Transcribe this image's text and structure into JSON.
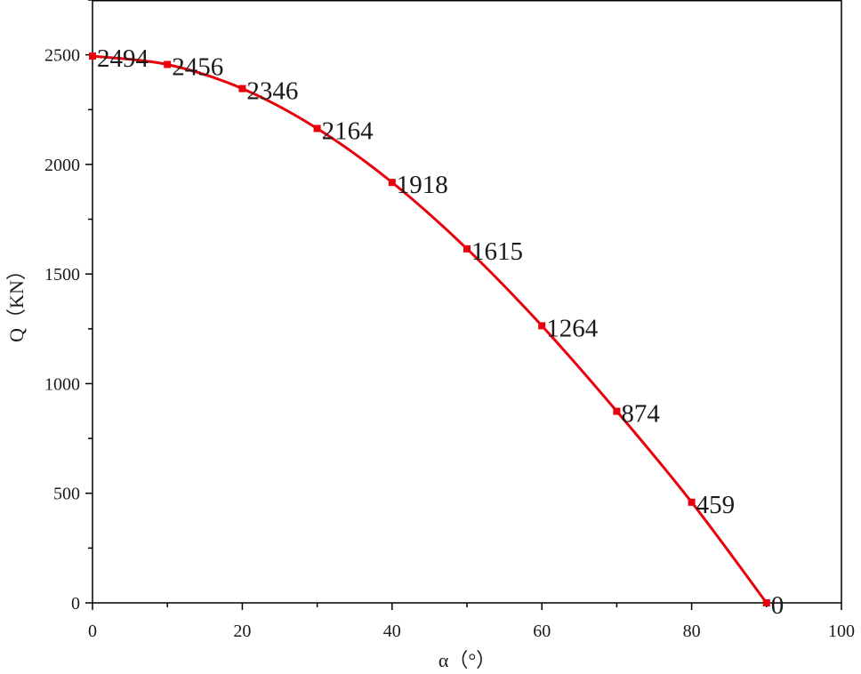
{
  "chart_data": {
    "type": "line",
    "title": "",
    "xlabel": "α（°）",
    "ylabel": "Q（KN）",
    "xlim": [
      0,
      100
    ],
    "ylim": [
      0,
      2750
    ],
    "x_ticks": [
      0,
      20,
      40,
      60,
      80,
      100
    ],
    "y_ticks": [
      0,
      500,
      1000,
      1500,
      2000,
      2500
    ],
    "x_tick_labels": [
      "0",
      "20",
      "40",
      "60",
      "80",
      "100"
    ],
    "y_tick_labels": [
      "0",
      "500",
      "1000",
      "1500",
      "2000",
      "2500"
    ],
    "grid": false,
    "series": [
      {
        "color": "#e8000b",
        "x": [
          0,
          10,
          20,
          30,
          40,
          50,
          60,
          70,
          80,
          90
        ],
        "values": [
          2494,
          2456,
          2346,
          2164,
          1918,
          1615,
          1264,
          874,
          459,
          0
        ],
        "data_labels": [
          "2494",
          "2456",
          "2346",
          "2164",
          "1918",
          "1615",
          "1264",
          "874",
          "459",
          "0"
        ]
      }
    ]
  }
}
